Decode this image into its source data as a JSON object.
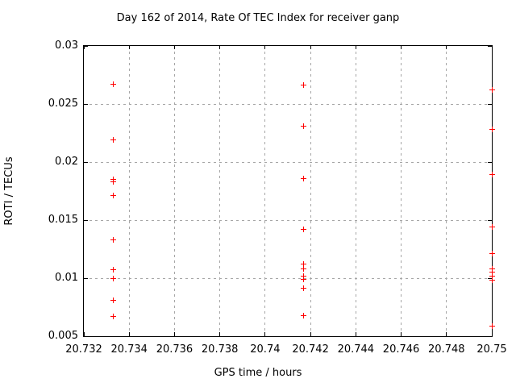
{
  "title": "Day 162 of 2014, Rate Of TEC Index for receiver ganp",
  "chart_data": {
    "type": "scatter",
    "title": "Day 162 of 2014, Rate Of TEC Index for receiver ganp",
    "xlabel": "GPS time / hours",
    "ylabel": "ROTI / TECUs",
    "xlim": [
      20.732,
      20.75
    ],
    "ylim": [
      0.005,
      0.03
    ],
    "grid": true,
    "legend": "none",
    "marker": "plus",
    "marker_color": "#ff0000",
    "grid_color": "#a6a6a6",
    "axis_color": "#000000",
    "background_color": "#ffffff",
    "xticks": [
      20.732,
      20.734,
      20.736,
      20.738,
      20.74,
      20.742,
      20.744,
      20.746,
      20.748,
      20.75
    ],
    "xtick_labels": [
      "20.732",
      "20.734",
      "20.736",
      "20.738",
      "20.74",
      "20.742",
      "20.744",
      "20.746",
      "20.748",
      "20.75"
    ],
    "yticks": [
      0.005,
      0.01,
      0.015,
      0.02,
      0.025,
      0.03
    ],
    "ytick_labels": [
      "0.005",
      "0.01",
      "0.015",
      "0.02",
      "0.025",
      "0.03"
    ],
    "series": [
      {
        "name": "ROTI",
        "marker": "+",
        "color": "#ff0000",
        "points": [
          [
            20.7333,
            0.0267
          ],
          [
            20.7333,
            0.0219
          ],
          [
            20.7333,
            0.0185
          ],
          [
            20.7333,
            0.0183
          ],
          [
            20.7333,
            0.0171
          ],
          [
            20.7333,
            0.0133
          ],
          [
            20.7333,
            0.0107
          ],
          [
            20.7333,
            0.01
          ],
          [
            20.7333,
            0.0081
          ],
          [
            20.7333,
            0.0067
          ],
          [
            20.7417,
            0.0266
          ],
          [
            20.7417,
            0.0231
          ],
          [
            20.7417,
            0.0186
          ],
          [
            20.7417,
            0.0142
          ],
          [
            20.7417,
            0.0112
          ],
          [
            20.7417,
            0.0108
          ],
          [
            20.7417,
            0.0102
          ],
          [
            20.7417,
            0.0099
          ],
          [
            20.7417,
            0.0091
          ],
          [
            20.7417,
            0.0068
          ],
          [
            20.75,
            0.0262
          ],
          [
            20.75,
            0.0228
          ],
          [
            20.75,
            0.0189
          ],
          [
            20.75,
            0.0144
          ],
          [
            20.75,
            0.0121
          ],
          [
            20.75,
            0.0108
          ],
          [
            20.75,
            0.0105
          ],
          [
            20.75,
            0.0102
          ],
          [
            20.75,
            0.0098
          ],
          [
            20.75,
            0.0059
          ]
        ]
      }
    ]
  }
}
